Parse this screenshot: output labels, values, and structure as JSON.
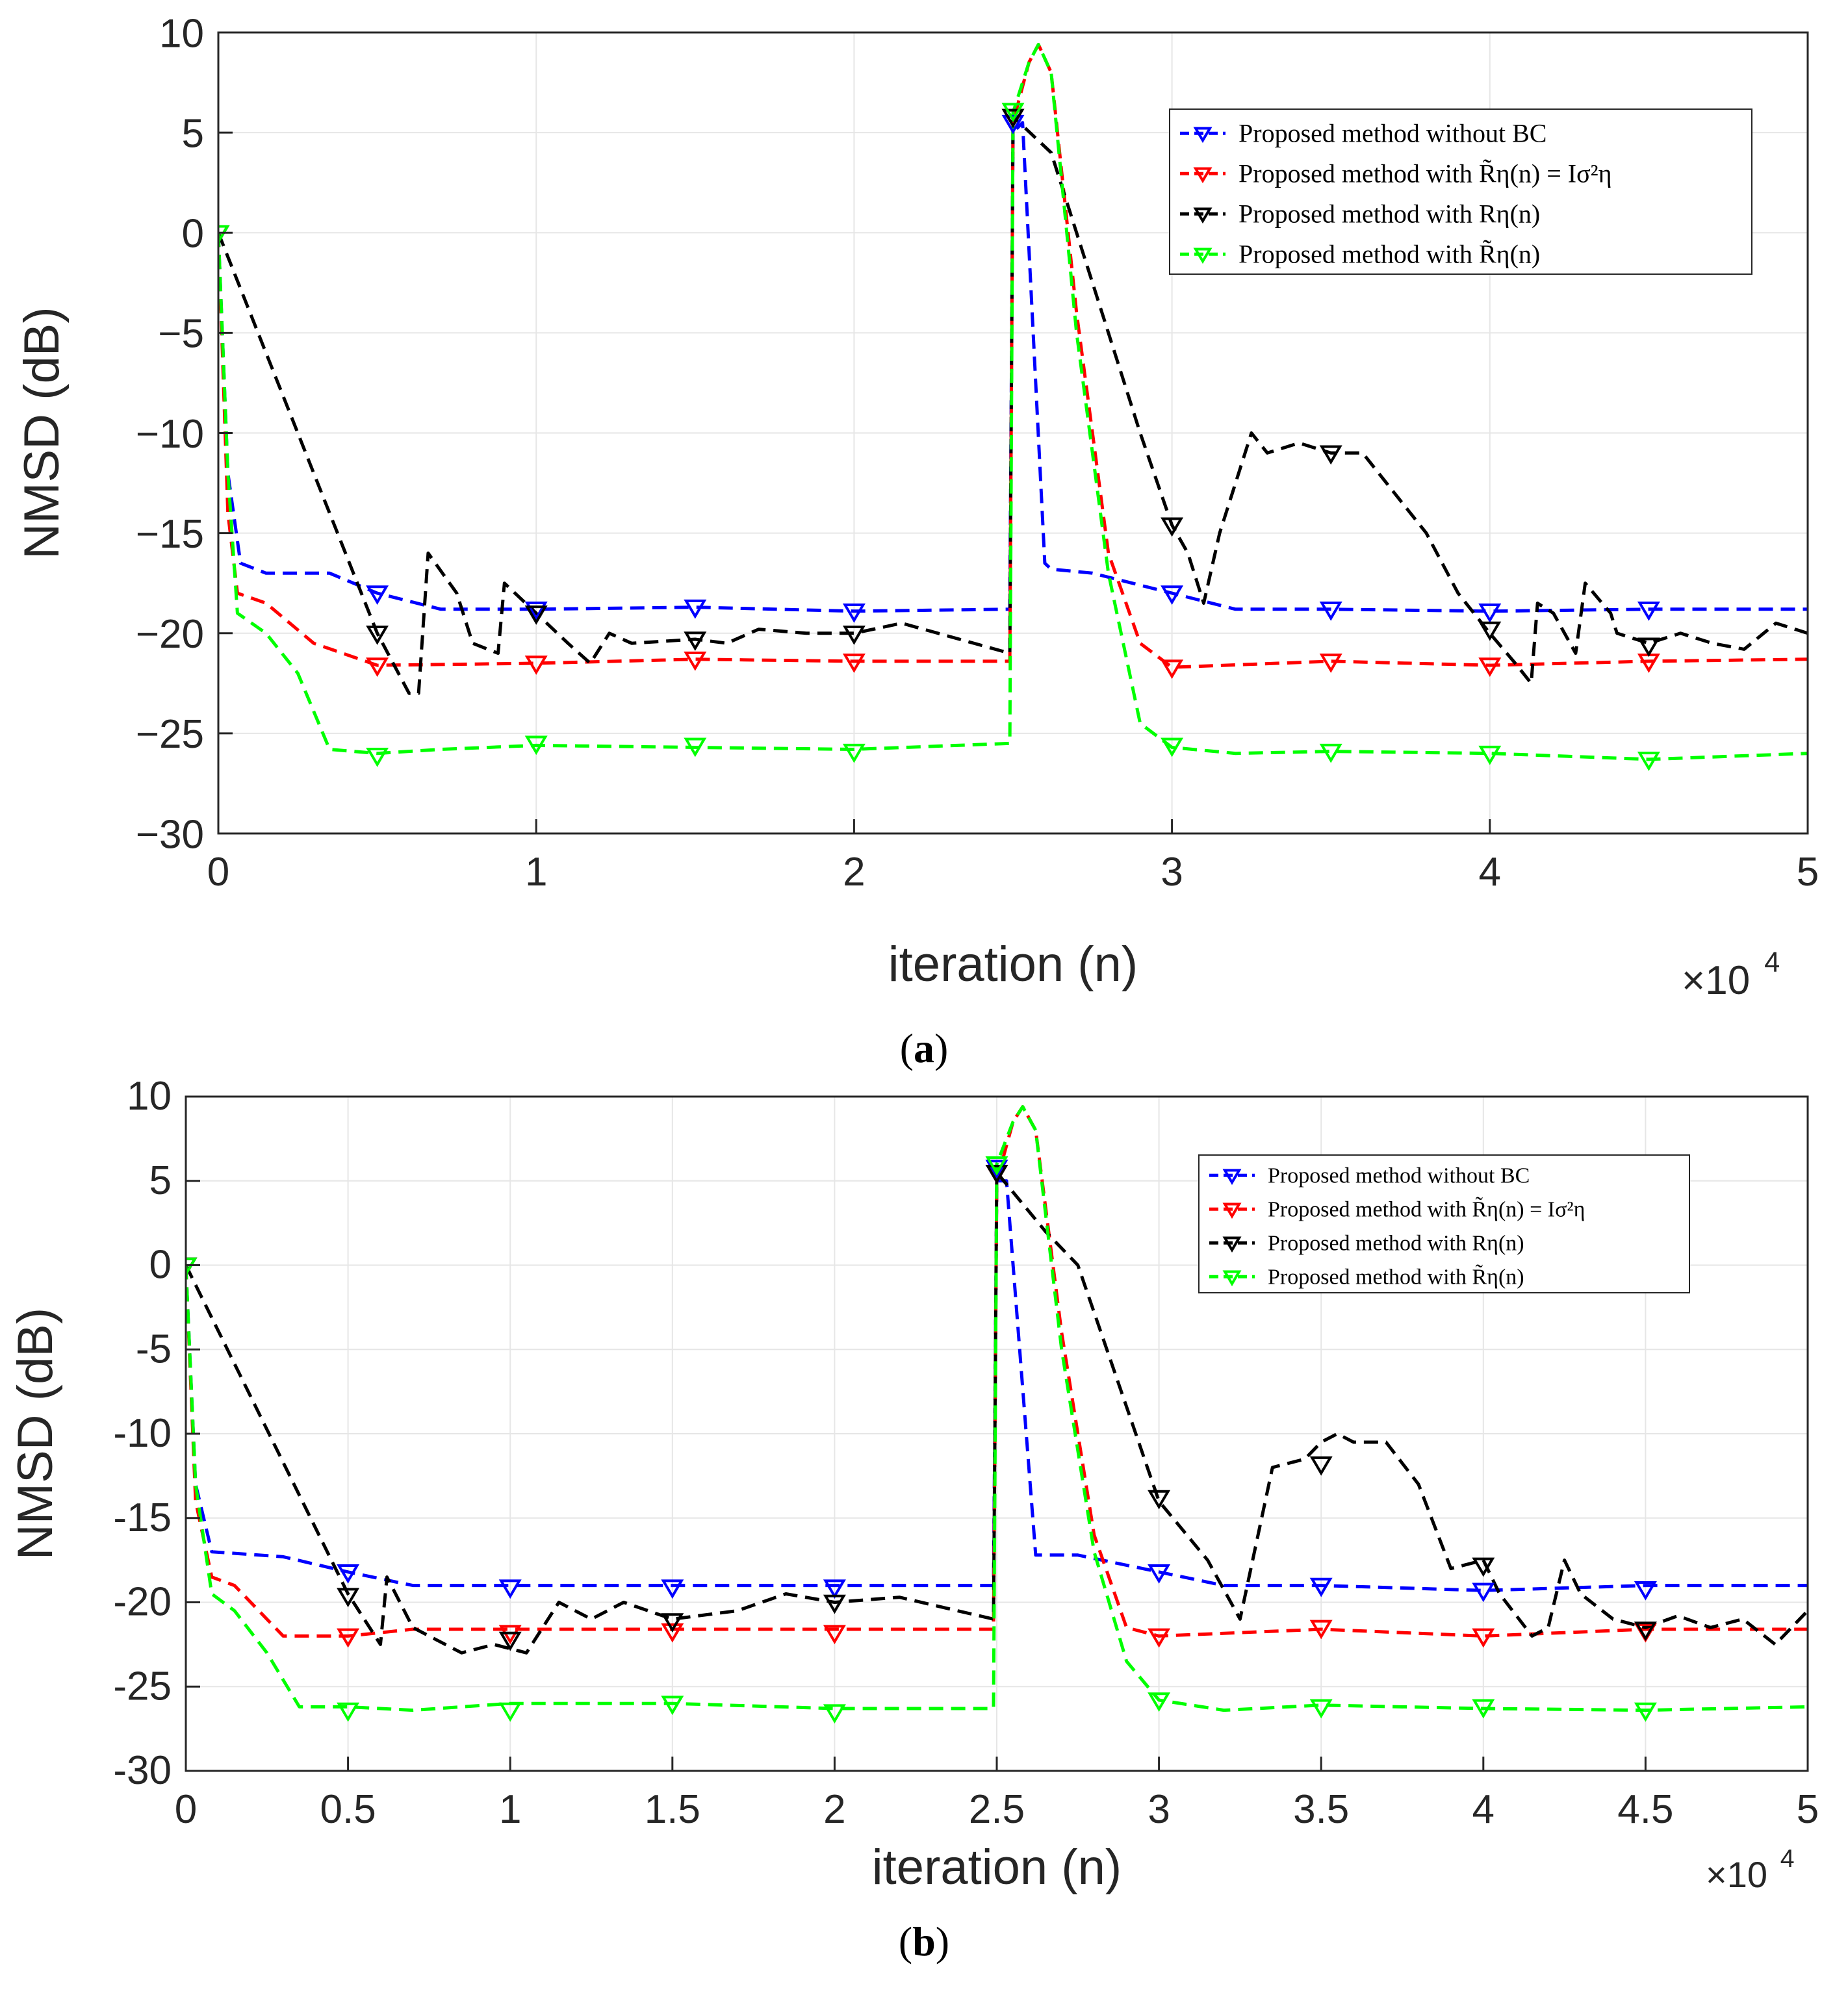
{
  "chart_data": [
    {
      "type": "line",
      "caption_letter": "a",
      "xlabel": "iteration (n)",
      "ylabel": "NMSD (dB)",
      "x_multiplier_base": "×10",
      "x_multiplier_exp": "4",
      "xlim": [
        0,
        50000
      ],
      "ylim": [
        -30,
        10
      ],
      "xticks": [
        0,
        10000,
        20000,
        30000,
        40000,
        50000
      ],
      "xtick_labels": [
        "0",
        "1",
        "2",
        "3",
        "4",
        "5"
      ],
      "yticks": [
        10,
        5,
        0,
        -5,
        -10,
        -15,
        -20,
        -25,
        -30
      ],
      "ytick_labels": [
        "10",
        "5",
        "0",
        "−5",
        "−10",
        "−15",
        "−20",
        "−25",
        "−30"
      ],
      "grid": true,
      "legend_position": "top-right",
      "marker_x": [
        0,
        5000,
        10000,
        15000,
        20000,
        25000,
        30000,
        35000,
        40000,
        45000
      ],
      "series": [
        {
          "name": "Proposed method without BC",
          "color": "#0000ff",
          "x": [
            0,
            300,
            700,
            1500,
            3500,
            5000,
            7000,
            10000,
            15000,
            20000,
            24900,
            25000,
            25300,
            26000,
            26200,
            27500,
            30000,
            32000,
            35000,
            40000,
            45000,
            50000
          ],
          "y": [
            0,
            -12,
            -16.5,
            -17,
            -17,
            -18,
            -18.8,
            -18.8,
            -18.7,
            -18.9,
            -18.8,
            5,
            5.5,
            -16.5,
            -16.8,
            -17,
            -18,
            -18.8,
            -18.8,
            -18.9,
            -18.8,
            -18.8
          ],
          "marker_y": [
            0,
            -18,
            -18.8,
            -18.7,
            -18.9,
            5.5,
            -18,
            -18.8,
            -18.9,
            -18.8
          ]
        },
        {
          "name": "Proposed method with R̃η(n) = Iσ²η",
          "color": "#ff0000",
          "x": [
            0,
            300,
            600,
            1500,
            3000,
            5000,
            10000,
            15000,
            20000,
            24900,
            25000,
            25500,
            25800,
            26200,
            27000,
            28000,
            29000,
            30000,
            35000,
            40000,
            45000,
            50000
          ],
          "y": [
            0,
            -14,
            -18,
            -18.5,
            -20.5,
            -21.6,
            -21.5,
            -21.3,
            -21.4,
            -21.4,
            5.5,
            8.5,
            9.4,
            8,
            -4,
            -16,
            -20.5,
            -21.7,
            -21.4,
            -21.6,
            -21.4,
            -21.3
          ],
          "marker_y": [
            0,
            -21.6,
            -21.5,
            -21.3,
            -21.4,
            5.8,
            -21.7,
            -21.4,
            -21.6,
            -21.4
          ]
        },
        {
          "name": "Proposed method with Rη(n)",
          "color": "#000000",
          "x": [
            0,
            5000,
            6000,
            6300,
            6600,
            7500,
            8000,
            8800,
            9000,
            10000,
            11000,
            11700,
            12300,
            13000,
            15000,
            16000,
            17000,
            18500,
            20000,
            21500,
            24900,
            25000,
            26200,
            27000,
            28000,
            29000,
            30000,
            30500,
            31000,
            31500,
            32500,
            33000,
            34000,
            35000,
            36000,
            37000,
            38000,
            39000,
            40000,
            40800,
            41300,
            41500,
            42000,
            42700,
            43000,
            43800,
            44000,
            45000,
            46000,
            47000,
            48000,
            49000,
            50000
          ],
          "y": [
            0,
            -20,
            -23,
            -23,
            -16,
            -18,
            -20.5,
            -21,
            -17.5,
            -19,
            -20.5,
            -21.5,
            -20,
            -20.5,
            -20.3,
            -20.5,
            -19.8,
            -20,
            -20,
            -19.5,
            -21,
            5.8,
            4,
            0,
            -5,
            -10,
            -14.6,
            -16,
            -18.5,
            -15,
            -10,
            -11,
            -10.5,
            -11,
            -11,
            -13,
            -15,
            -18,
            -20,
            -21.5,
            -22.5,
            -18.5,
            -19,
            -21,
            -17.5,
            -19,
            -20,
            -20.5,
            -20,
            -20.5,
            -20.8,
            -19.5,
            -20
          ],
          "marker_y": [
            0,
            -20,
            -19,
            -20.3,
            -20,
            5.8,
            -14.6,
            -11,
            -19.8,
            -20.6
          ]
        },
        {
          "name": "Proposed method with R̃η(n)",
          "color": "#00ff00",
          "x": [
            0,
            300,
            600,
            1500,
            2500,
            3500,
            5000,
            7000,
            10000,
            15000,
            20000,
            24900,
            25000,
            25500,
            25800,
            26200,
            27000,
            28000,
            29000,
            30000,
            32000,
            35000,
            40000,
            45000,
            50000
          ],
          "y": [
            0,
            -12,
            -19,
            -20,
            -22,
            -25.8,
            -26,
            -25.8,
            -25.6,
            -25.7,
            -25.8,
            -25.5,
            6,
            8.5,
            9.4,
            8,
            -5,
            -17,
            -24.5,
            -25.7,
            -26,
            -25.9,
            -26,
            -26.3,
            -26
          ],
          "marker_y": [
            0,
            -26.1,
            -25.5,
            -25.6,
            -25.9,
            6.1,
            -25.6,
            -25.9,
            -26,
            -26.3
          ]
        }
      ]
    },
    {
      "type": "line",
      "caption_letter": "b",
      "xlabel": "iteration (n)",
      "ylabel": "NMSD (dB)",
      "x_multiplier_base": "×10",
      "x_multiplier_exp": "4",
      "xlim": [
        0,
        50000
      ],
      "ylim": [
        -30,
        10
      ],
      "xticks": [
        0,
        5000,
        10000,
        15000,
        20000,
        25000,
        30000,
        35000,
        40000,
        45000,
        50000
      ],
      "xtick_labels": [
        "0",
        "0.5",
        "1",
        "1.5",
        "2",
        "2.5",
        "3",
        "3.5",
        "4",
        "4.5",
        "5"
      ],
      "yticks": [
        10,
        5,
        0,
        -5,
        -10,
        -15,
        -20,
        -25,
        -30
      ],
      "ytick_labels": [
        "10",
        "5",
        "0",
        "-5",
        "-10",
        "-15",
        "-20",
        "-25",
        "-30"
      ],
      "grid": true,
      "legend_position": "top-right",
      "marker_x": [
        0,
        5000,
        10000,
        15000,
        20000,
        25000,
        30000,
        35000,
        40000,
        45000
      ],
      "series": [
        {
          "name": "Proposed method without BC",
          "color": "#0000ff",
          "x": [
            0,
            300,
            800,
            3000,
            5000,
            7000,
            10000,
            15000,
            20000,
            24900,
            25000,
            25300,
            26200,
            27500,
            30000,
            32000,
            35000,
            40000,
            45000,
            50000
          ],
          "y": [
            0,
            -13,
            -17,
            -17.3,
            -18.2,
            -19,
            -19,
            -19,
            -19,
            -19,
            5,
            5,
            -17.2,
            -17.2,
            -18.2,
            -19,
            -19,
            -19.3,
            -19,
            -19
          ],
          "marker_y": [
            0,
            -18.2,
            -19.1,
            -19.1,
            -19.1,
            5.8,
            -18.2,
            -19,
            -19.3,
            -19.2
          ]
        },
        {
          "name": "Proposed method with R̃η(n) = Iσ²η",
          "color": "#ff0000",
          "x": [
            0,
            300,
            800,
            1500,
            3000,
            5000,
            7000,
            10000,
            15000,
            20000,
            24900,
            25000,
            25500,
            25800,
            26200,
            27000,
            28000,
            29000,
            30000,
            35000,
            40000,
            45000,
            50000
          ],
          "y": [
            0,
            -14,
            -18.5,
            -19,
            -22,
            -22,
            -21.6,
            -21.6,
            -21.6,
            -21.6,
            -21.6,
            5,
            8.5,
            9.4,
            8,
            -4,
            -16,
            -21.5,
            -22,
            -21.6,
            -22,
            -21.6,
            -21.6
          ],
          "marker_y": [
            0,
            -22,
            -21.8,
            -21.7,
            -21.8,
            5.5,
            -22,
            -21.5,
            -22,
            -21.7
          ]
        },
        {
          "name": "Proposed method with Rη(n)",
          "color": "#000000",
          "x": [
            0,
            5000,
            6000,
            6200,
            7000,
            8500,
            9500,
            10500,
            11500,
            12500,
            13500,
            15000,
            17000,
            18500,
            20000,
            22000,
            24900,
            25000,
            26500,
            27500,
            30000,
            31500,
            32500,
            33500,
            34500,
            35000,
            35500,
            36000,
            37000,
            38000,
            39000,
            40000,
            40500,
            41500,
            42000,
            42500,
            43000,
            44000,
            45000,
            46000,
            47000,
            48000,
            49000,
            50000
          ],
          "y": [
            0,
            -19.5,
            -22.5,
            -18.5,
            -21.5,
            -23,
            -22.5,
            -23,
            -20,
            -21,
            -20,
            -21,
            -20.5,
            -19.5,
            -20,
            -19.7,
            -21,
            5.5,
            2,
            0,
            -14,
            -17.5,
            -21,
            -12,
            -11.5,
            -10.5,
            -10,
            -10.5,
            -10.5,
            -13,
            -18,
            -17.5,
            -19.5,
            -22,
            -21.5,
            -17.5,
            -19.5,
            -21,
            -21.5,
            -20.8,
            -21.5,
            -21,
            -22.5,
            -20.5
          ],
          "marker_y": [
            0,
            -19.6,
            -22.2,
            -21.1,
            -20,
            5.5,
            -13.8,
            -11.8,
            -17.8,
            -21.6
          ]
        },
        {
          "name": "Proposed method with R̃η(n)",
          "color": "#00ff00",
          "x": [
            0,
            300,
            800,
            1500,
            2500,
            3500,
            5000,
            7000,
            10000,
            15000,
            20000,
            24900,
            25000,
            25500,
            25800,
            26200,
            27000,
            28000,
            29000,
            30000,
            32000,
            35000,
            40000,
            45000,
            50000
          ],
          "y": [
            0,
            -13,
            -19.5,
            -20.5,
            -23,
            -26.2,
            -26.2,
            -26.4,
            -26,
            -26,
            -26.3,
            -26.3,
            6,
            8.5,
            9.4,
            8,
            -5,
            -17,
            -23.5,
            -25.8,
            -26.4,
            -26.1,
            -26.3,
            -26.4,
            -26.2
          ],
          "marker_y": [
            0,
            -26.4,
            -26.4,
            -26,
            -26.5,
            6,
            -25.8,
            -26.2,
            -26.2,
            -26.4
          ]
        }
      ]
    }
  ]
}
